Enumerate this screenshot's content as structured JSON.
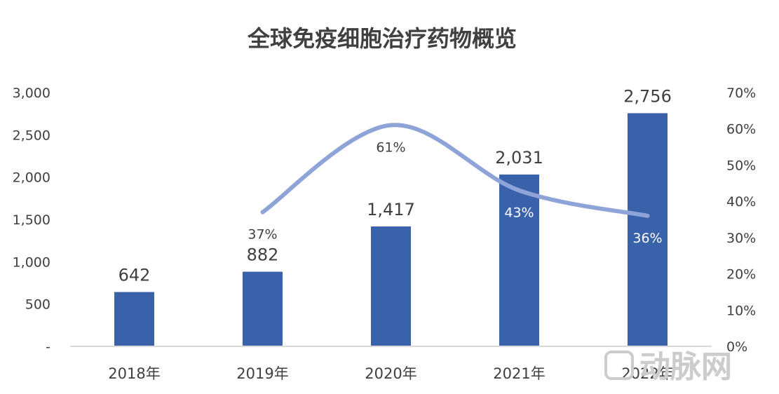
{
  "chart_data": {
    "type": "bar",
    "title": "全球免疫细胞治疗药物概览",
    "categories": [
      "2018年",
      "2019年",
      "2020年",
      "2021年",
      "2022年"
    ],
    "bar_series": {
      "values": [
        642,
        882,
        1417,
        2031,
        2756
      ],
      "labels": [
        "642",
        "882",
        "1,417",
        "2,031",
        "2,756"
      ],
      "color": "#3A62AB"
    },
    "line_series": {
      "values": [
        null,
        37,
        61,
        43,
        36
      ],
      "labels": [
        "",
        "37%",
        "61%",
        "43%",
        "36%"
      ],
      "color": "#8EA4D8"
    },
    "y_left": {
      "ylim": [
        0,
        3000
      ],
      "ticks": [
        0,
        500,
        1000,
        1500,
        2000,
        2500,
        3000
      ],
      "tick_labels": [
        "-",
        "500",
        "1,000",
        "1,500",
        "2,000",
        "2,500",
        "3,000"
      ]
    },
    "y_right": {
      "ylim": [
        0,
        70
      ],
      "ticks": [
        0,
        10,
        20,
        30,
        40,
        50,
        60,
        70
      ],
      "tick_labels": [
        "0%",
        "10%",
        "20%",
        "30%",
        "40%",
        "50%",
        "60%",
        "70%"
      ]
    },
    "grid": false,
    "watermark": "动脉网"
  }
}
